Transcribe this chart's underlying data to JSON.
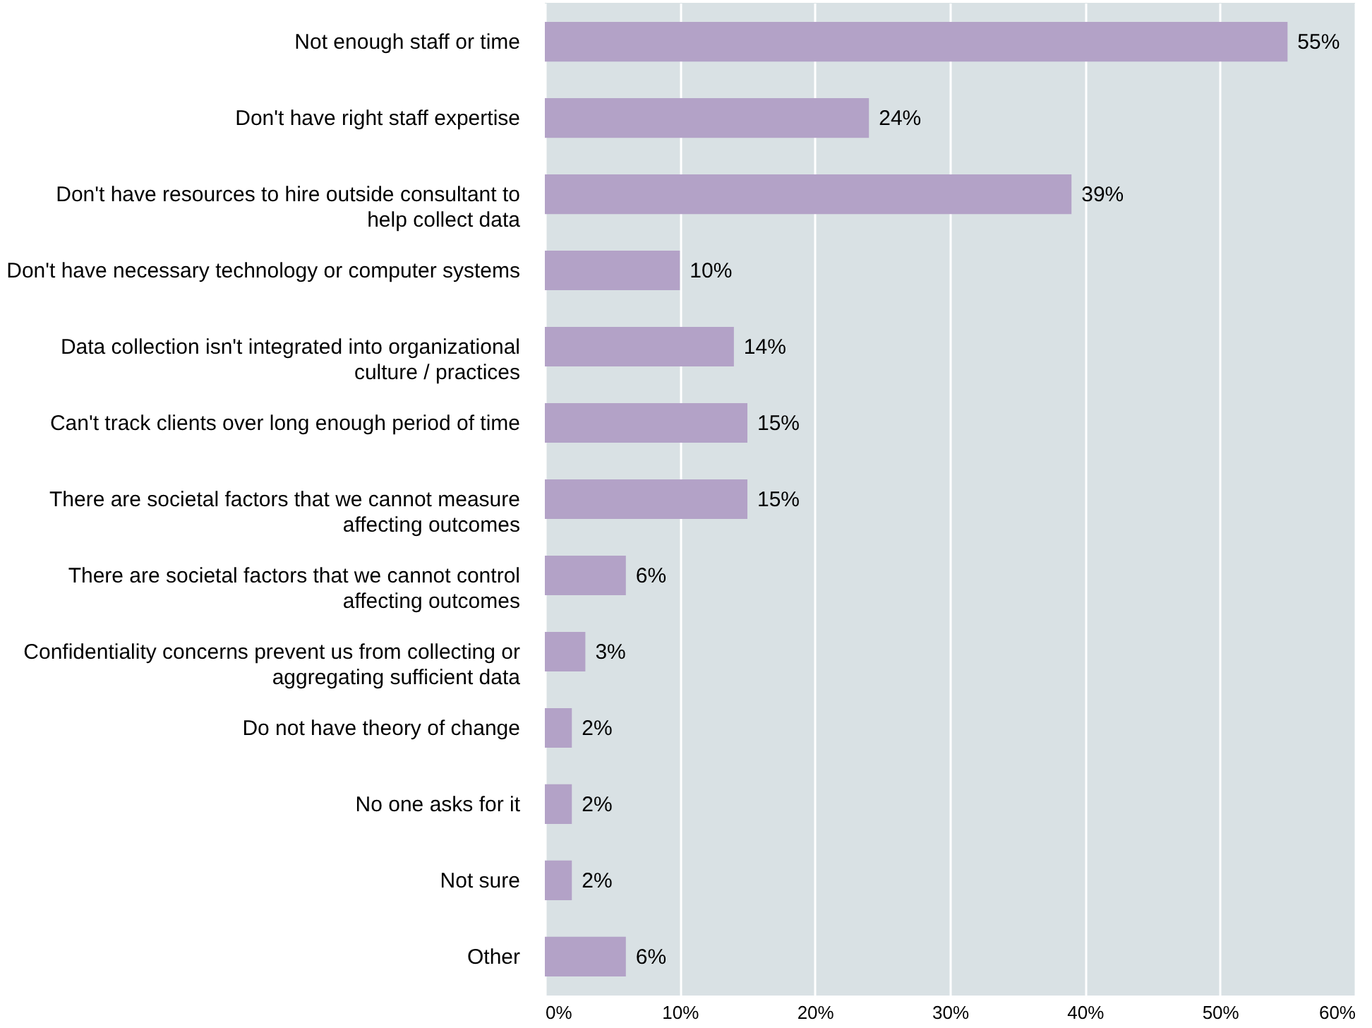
{
  "chart_data": {
    "type": "bar",
    "orientation": "horizontal",
    "categories": [
      "Not enough staff or time",
      "Don't have right staff expertise",
      "Don't have resources to hire outside consultant to\nhelp collect data",
      "Don't have necessary technology or computer systems",
      "Data collection isn't integrated into organizational\nculture / practices",
      "Can't track clients over long enough period of time",
      "There are societal factors that we cannot measure\naffecting outcomes",
      "There are societal factors that we cannot control\naffecting outcomes",
      "Confidentiality concerns prevent us from collecting or\naggregating sufficient data",
      "Do not have theory of change",
      "No one asks for it",
      "Not sure",
      "Other"
    ],
    "values": [
      55,
      24,
      39,
      10,
      14,
      15,
      15,
      6,
      3,
      2,
      2,
      2,
      6
    ],
    "value_labels": [
      "55%",
      "24%",
      "39%",
      "10%",
      "14%",
      "15%",
      "15%",
      "6%",
      "3%",
      "2%",
      "2%",
      "2%",
      "6%"
    ],
    "color": "#b3a2c7",
    "xlim": [
      0,
      60
    ],
    "xticks": [
      {
        "value": 0,
        "label": "0%"
      },
      {
        "value": 10,
        "label": "10%"
      },
      {
        "value": 20,
        "label": "20%"
      },
      {
        "value": 30,
        "label": "30%"
      },
      {
        "value": 40,
        "label": "40%"
      },
      {
        "value": 50,
        "label": "50%"
      },
      {
        "value": 60,
        "label": "60%"
      }
    ],
    "grid": "x"
  }
}
